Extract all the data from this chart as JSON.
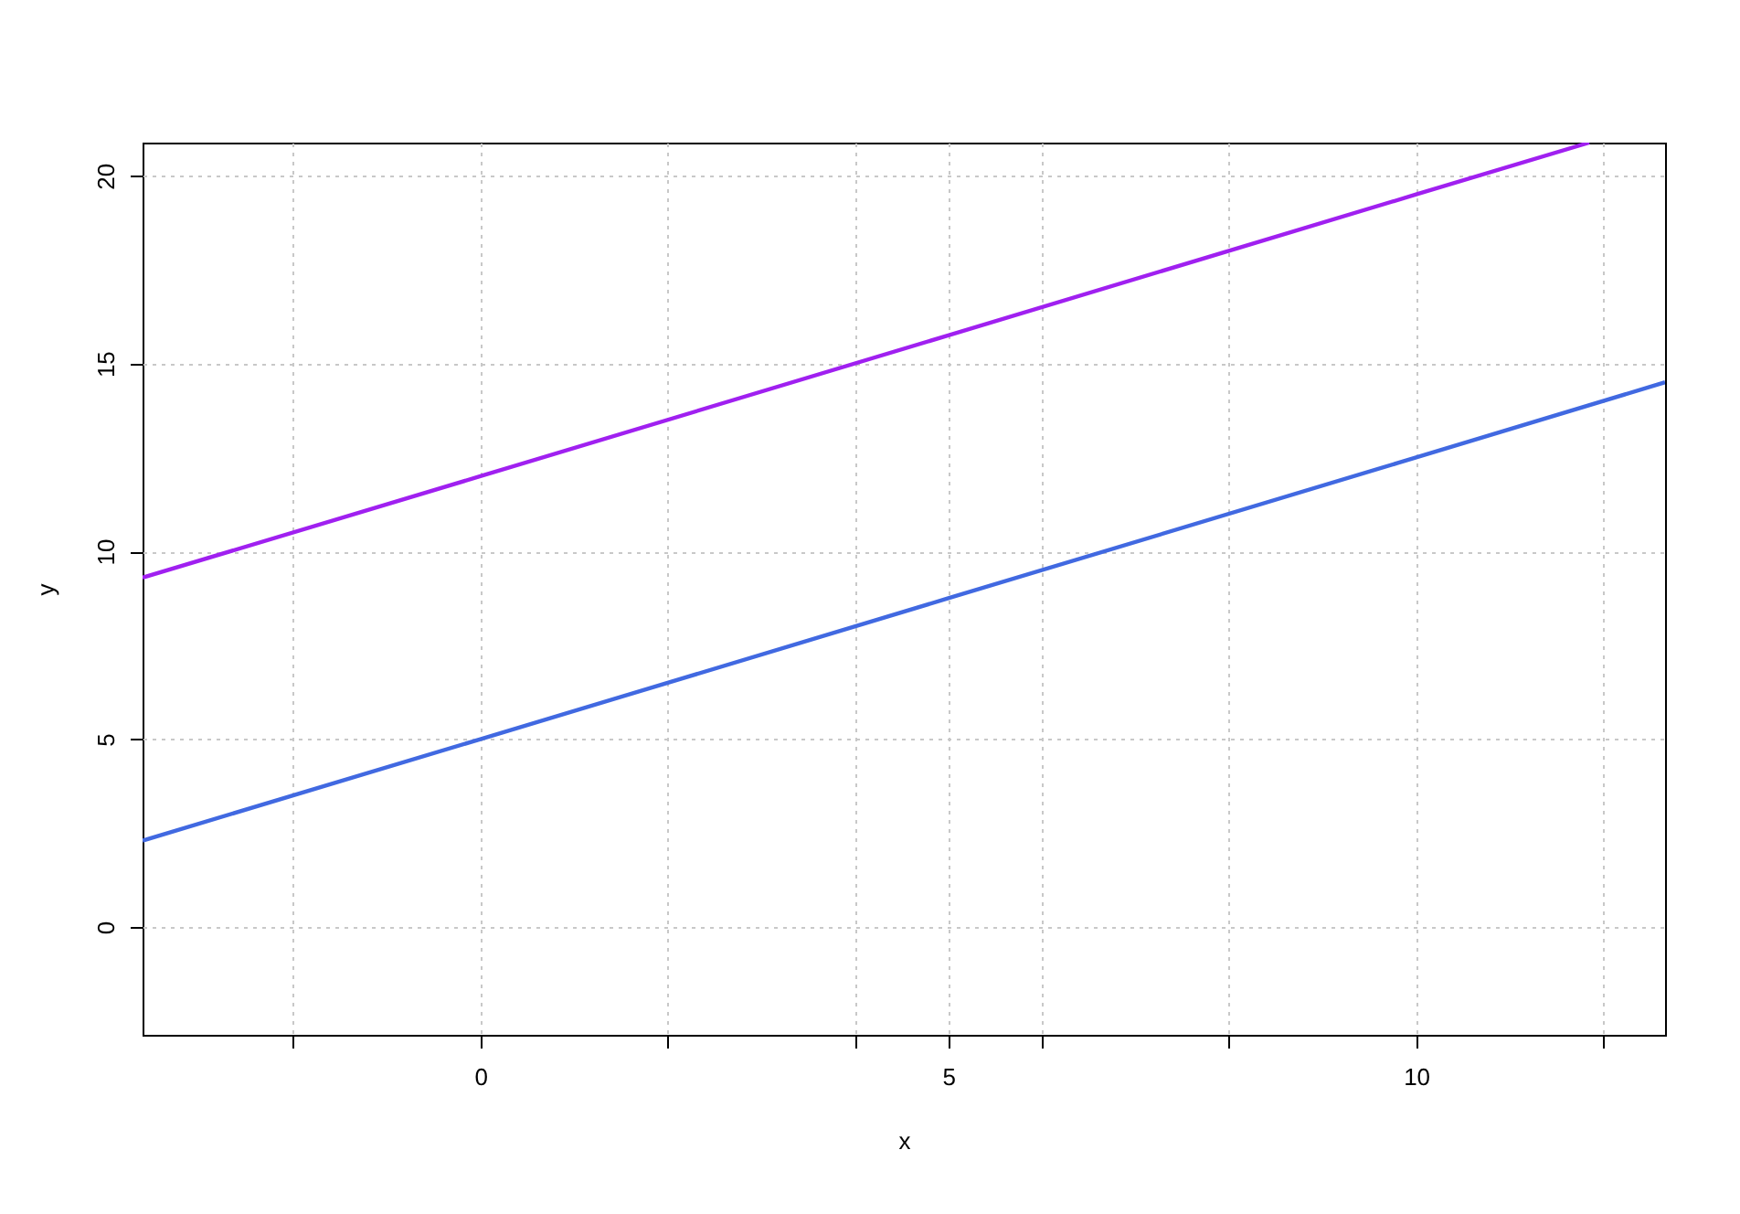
{
  "chart_data": {
    "type": "line",
    "xlabel": "x",
    "ylabel": "y",
    "xlim": [
      -3.61,
      12.66
    ],
    "ylim": [
      -2.87,
      20.88
    ],
    "xticks": [
      {
        "value": -2,
        "label": null
      },
      0,
      {
        "value": 2,
        "label": null
      },
      {
        "value": 4,
        "label": null
      },
      5,
      {
        "value": 6,
        "label": null
      },
      {
        "value": 8,
        "label": null
      },
      10,
      {
        "value": 12,
        "label": null
      }
    ],
    "yticks": [
      0,
      5,
      10,
      15,
      20
    ],
    "grid": true,
    "marker": "none",
    "line_style": "solid",
    "series": [
      {
        "color": "#a020f0",
        "x": [
          -3.61,
          0,
          5,
          10,
          11.85
        ],
        "values": [
          9.3,
          12,
          15.75,
          19.5,
          20.88
        ]
      },
      {
        "color": "#4169e1",
        "x": [
          -3.61,
          0,
          5,
          10,
          12.66
        ],
        "values": [
          2.3,
          5,
          8.75,
          12.5,
          14.5
        ]
      }
    ]
  }
}
